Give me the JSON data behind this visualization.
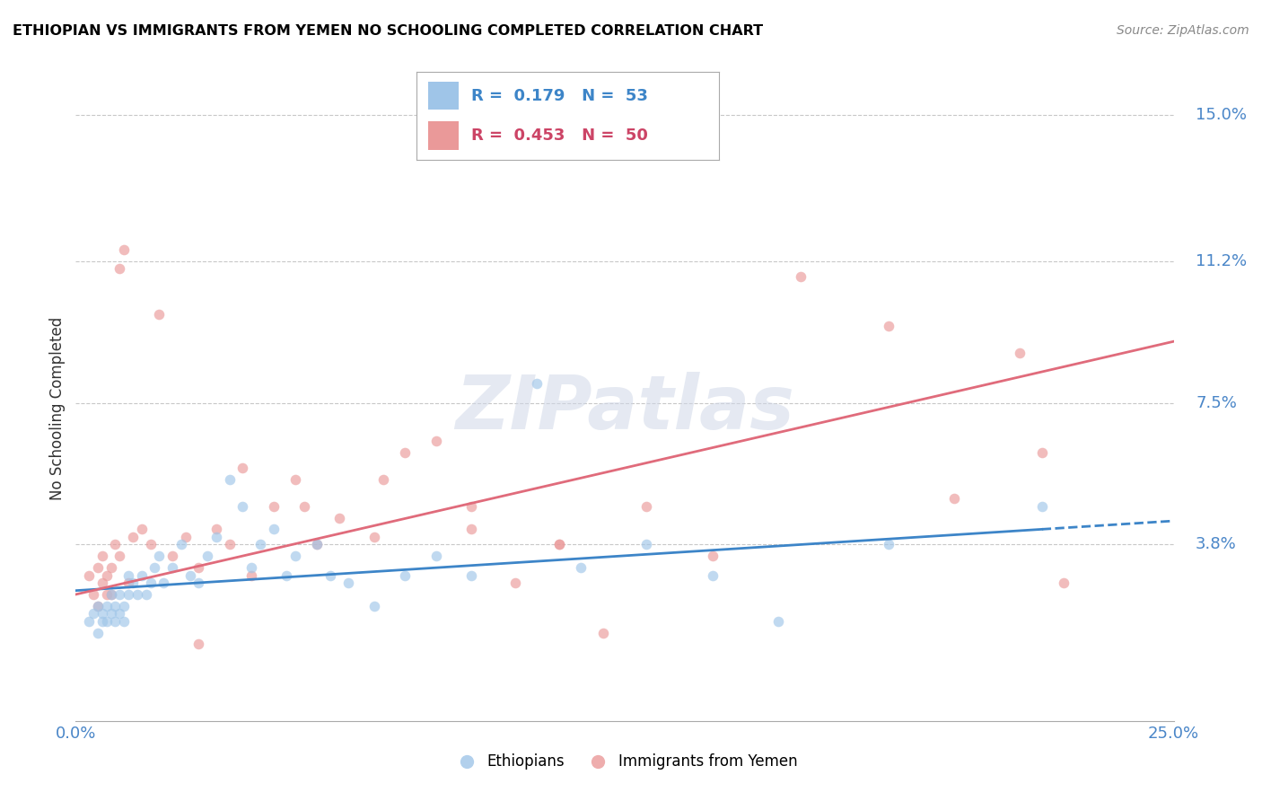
{
  "title": "ETHIOPIAN VS IMMIGRANTS FROM YEMEN NO SCHOOLING COMPLETED CORRELATION CHART",
  "source": "Source: ZipAtlas.com",
  "ylabel": "No Schooling Completed",
  "x_min": 0.0,
  "x_max": 0.25,
  "y_min": -0.008,
  "y_max": 0.155,
  "y_ticks": [
    0.038,
    0.075,
    0.112,
    0.15
  ],
  "y_tick_labels": [
    "3.8%",
    "7.5%",
    "11.2%",
    "15.0%"
  ],
  "x_tick_labels": [
    "0.0%",
    "25.0%"
  ],
  "r_ethiopian": 0.179,
  "n_ethiopian": 53,
  "r_yemen": 0.453,
  "n_yemen": 50,
  "background_color": "#ffffff",
  "grid_color": "#c8c8c8",
  "scatter_ethiopian_color": "#9fc5e8",
  "scatter_yemen_color": "#ea9999",
  "line_ethiopian_color": "#3d85c8",
  "line_yemen_color": "#e06b7b",
  "scatter_alpha": 0.65,
  "scatter_size": 70,
  "eth_line_x_end": 0.22,
  "eth_line_y_start": 0.026,
  "eth_line_y_end": 0.042,
  "yemen_line_y_start": 0.025,
  "yemen_line_y_end": 0.091,
  "ethiopians_x": [
    0.003,
    0.004,
    0.005,
    0.005,
    0.006,
    0.006,
    0.007,
    0.007,
    0.008,
    0.008,
    0.009,
    0.009,
    0.01,
    0.01,
    0.011,
    0.011,
    0.012,
    0.012,
    0.013,
    0.014,
    0.015,
    0.016,
    0.017,
    0.018,
    0.019,
    0.02,
    0.022,
    0.024,
    0.026,
    0.028,
    0.03,
    0.032,
    0.035,
    0.038,
    0.04,
    0.042,
    0.045,
    0.048,
    0.05,
    0.055,
    0.058,
    0.062,
    0.068,
    0.075,
    0.082,
    0.09,
    0.105,
    0.115,
    0.13,
    0.145,
    0.16,
    0.185,
    0.22
  ],
  "ethiopians_y": [
    0.018,
    0.02,
    0.022,
    0.015,
    0.02,
    0.018,
    0.022,
    0.018,
    0.025,
    0.02,
    0.018,
    0.022,
    0.025,
    0.02,
    0.022,
    0.018,
    0.025,
    0.03,
    0.028,
    0.025,
    0.03,
    0.025,
    0.028,
    0.032,
    0.035,
    0.028,
    0.032,
    0.038,
    0.03,
    0.028,
    0.035,
    0.04,
    0.055,
    0.048,
    0.032,
    0.038,
    0.042,
    0.03,
    0.035,
    0.038,
    0.03,
    0.028,
    0.022,
    0.03,
    0.035,
    0.03,
    0.08,
    0.032,
    0.038,
    0.03,
    0.018,
    0.038,
    0.048
  ],
  "yemen_x": [
    0.003,
    0.004,
    0.005,
    0.005,
    0.006,
    0.006,
    0.007,
    0.007,
    0.008,
    0.008,
    0.009,
    0.01,
    0.01,
    0.011,
    0.012,
    0.013,
    0.015,
    0.017,
    0.019,
    0.022,
    0.025,
    0.028,
    0.032,
    0.035,
    0.04,
    0.045,
    0.05,
    0.055,
    0.06,
    0.068,
    0.075,
    0.082,
    0.09,
    0.1,
    0.11,
    0.12,
    0.13,
    0.145,
    0.165,
    0.185,
    0.2,
    0.215,
    0.22,
    0.225,
    0.028,
    0.038,
    0.052,
    0.07,
    0.09,
    0.11
  ],
  "yemen_y": [
    0.03,
    0.025,
    0.032,
    0.022,
    0.028,
    0.035,
    0.03,
    0.025,
    0.025,
    0.032,
    0.038,
    0.035,
    0.11,
    0.115,
    0.028,
    0.04,
    0.042,
    0.038,
    0.098,
    0.035,
    0.04,
    0.032,
    0.042,
    0.038,
    0.03,
    0.048,
    0.055,
    0.038,
    0.045,
    0.04,
    0.062,
    0.065,
    0.048,
    0.028,
    0.038,
    0.015,
    0.048,
    0.035,
    0.108,
    0.095,
    0.05,
    0.088,
    0.062,
    0.028,
    0.012,
    0.058,
    0.048,
    0.055,
    0.042,
    0.038
  ]
}
